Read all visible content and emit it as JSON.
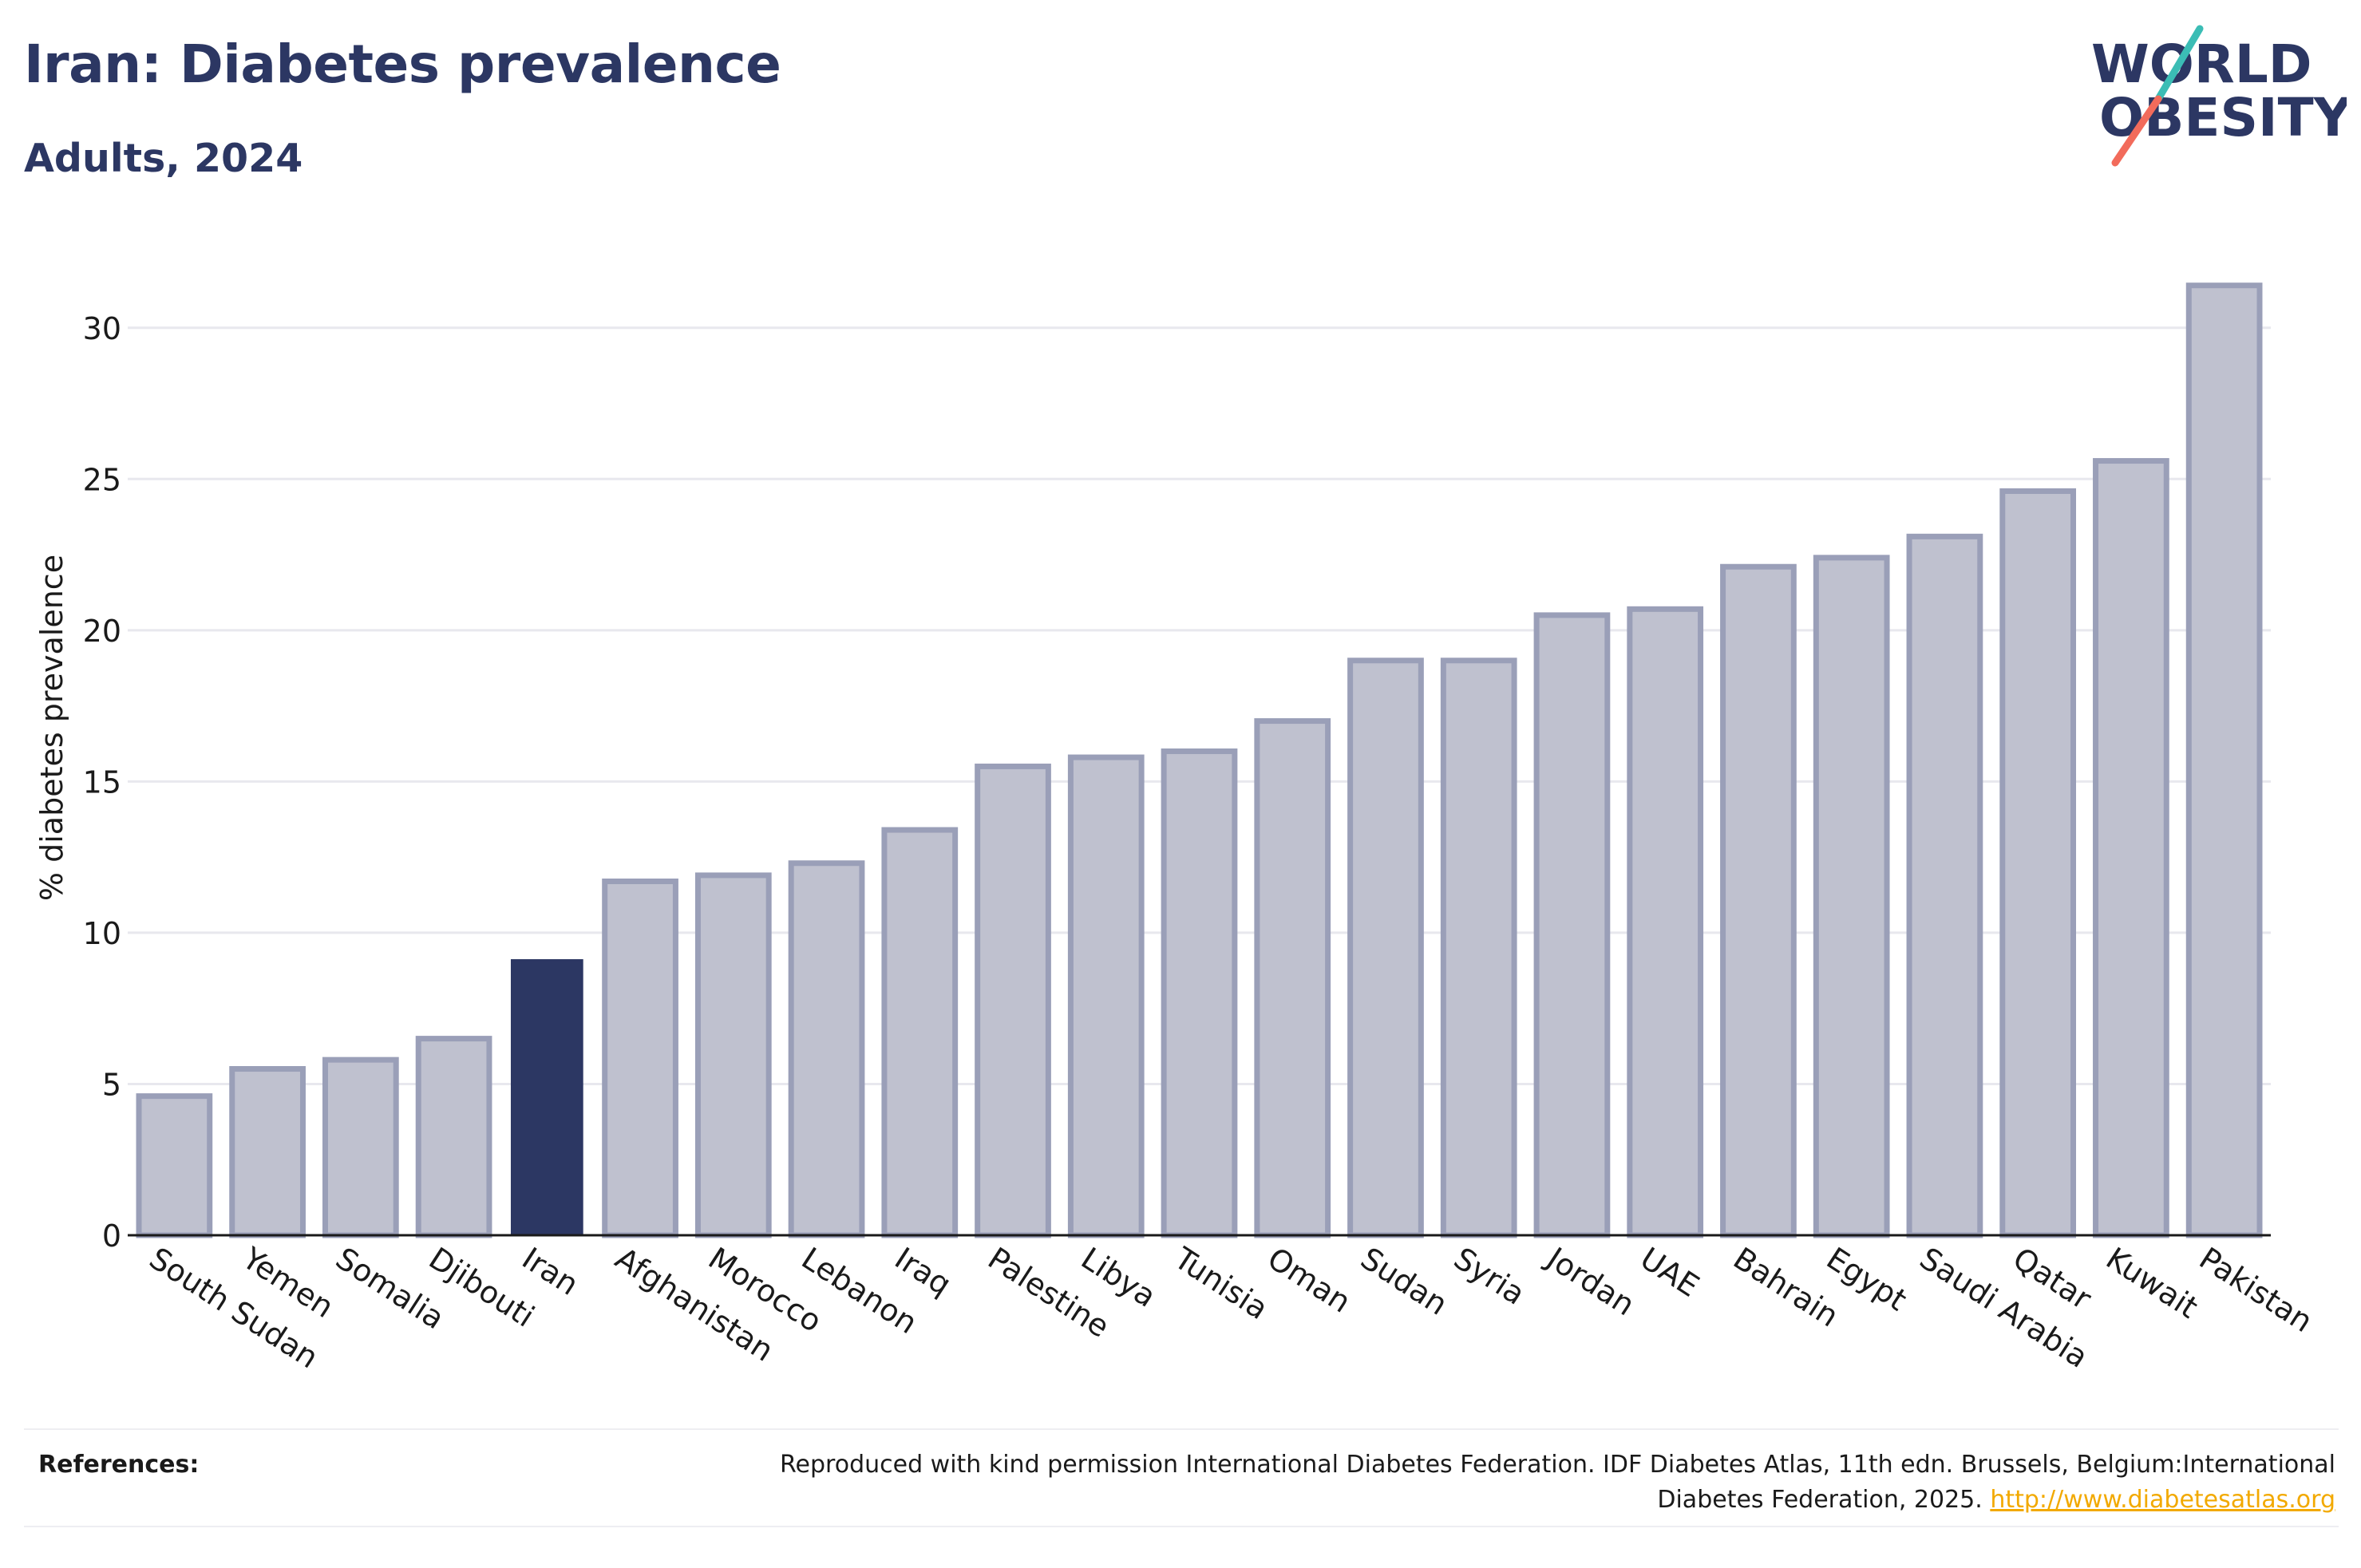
{
  "header": {
    "title": "Iran: Diabetes prevalence",
    "subtitle": "Adults, 2024"
  },
  "logo": {
    "line1": "WORLD",
    "line2": "OBESITY",
    "colors": {
      "text": "#2c3763",
      "slash_top": "#3bbdb5",
      "slash_bottom": "#f26b5b"
    }
  },
  "chart_data": {
    "type": "bar",
    "title": "Iran: Diabetes prevalence",
    "subtitle": "Adults, 2024",
    "xlabel": "",
    "ylabel": "% diabetes prevalence",
    "ylim": [
      0,
      32.5
    ],
    "yticks": [
      0,
      5,
      10,
      15,
      20,
      25,
      30
    ],
    "grid": true,
    "highlight": "Iran",
    "colors": {
      "bar": "#bfc1cf",
      "bar_edge": "#9a9fb8",
      "highlight": "#2c3763"
    },
    "categories": [
      "South Sudan",
      "Yemen",
      "Somalia",
      "Djibouti",
      "Iran",
      "Afghanistan",
      "Morocco",
      "Lebanon",
      "Iraq",
      "Palestine",
      "Libya",
      "Tunisia",
      "Oman",
      "Sudan",
      "Syria",
      "Jordan",
      "UAE",
      "Bahrain",
      "Egypt",
      "Saudi Arabia",
      "Qatar",
      "Kuwait",
      "Pakistan"
    ],
    "values": [
      4.6,
      5.5,
      5.8,
      6.5,
      9.1,
      11.7,
      11.9,
      12.3,
      13.4,
      15.5,
      15.8,
      16.0,
      17.0,
      19.0,
      19.0,
      20.5,
      20.7,
      22.1,
      22.4,
      23.1,
      24.6,
      25.6,
      31.4
    ]
  },
  "references": {
    "label": "References:",
    "line1": "Reproduced with kind permission International Diabetes Federation. IDF Diabetes Atlas, 11th edn. Brussels, Belgium:International",
    "line2": "Diabetes Federation, 2025.",
    "link": "http://www.diabetesatlas.org"
  }
}
